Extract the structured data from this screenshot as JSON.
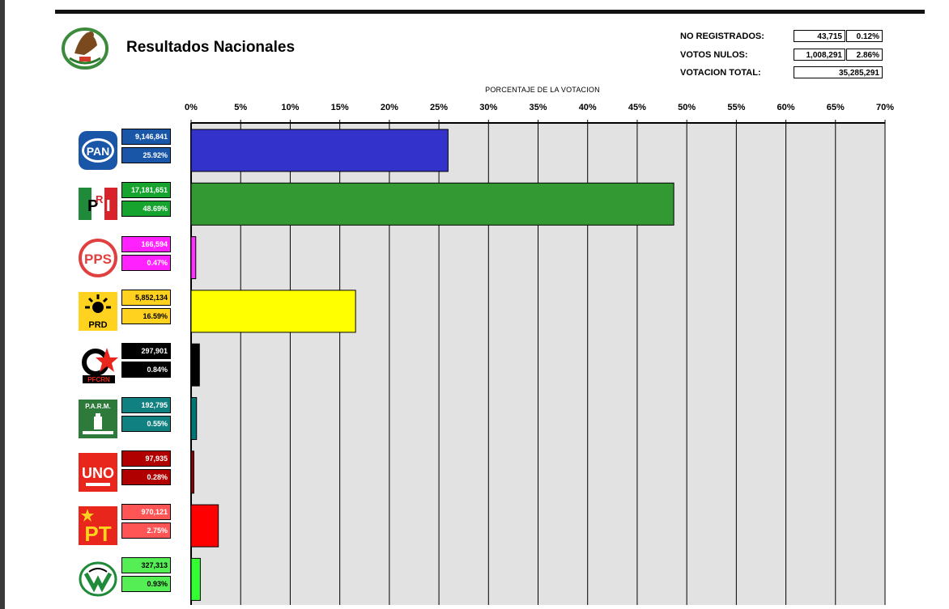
{
  "title": "Resultados Nacionales",
  "summary": {
    "no_registrados": {
      "label": "NO REGISTRADOS:",
      "votes": "43,715",
      "pct": "0.12%"
    },
    "votos_nulos": {
      "label": "VOTOS NULOS:",
      "votes": "1,008,291",
      "pct": "2.86%"
    },
    "votacion_total": {
      "label": "VOTACION TOTAL:",
      "votes": "35,285,291"
    }
  },
  "colors": {
    "grid_bg": "#e2e2e2",
    "emblem_green": "#3c8a3c"
  },
  "chart_data": {
    "type": "bar",
    "orientation": "horizontal",
    "title": "PORCENTAJE DE LA VOTACION",
    "xlim": [
      0,
      70
    ],
    "xticks": [
      "0%",
      "5%",
      "10%",
      "15%",
      "20%",
      "25%",
      "30%",
      "35%",
      "40%",
      "45%",
      "50%",
      "55%",
      "60%",
      "65%",
      "70%"
    ],
    "grid": true,
    "categories": [
      "PAN",
      "PRI",
      "PPS",
      "PRD",
      "PFCRN",
      "PARM",
      "UNO",
      "PT",
      "PVEM"
    ],
    "values": [
      25.92,
      48.69,
      0.47,
      16.59,
      0.84,
      0.55,
      0.28,
      2.75,
      0.93
    ],
    "votes": [
      "9,146,841",
      "17,181,651",
      "166,594",
      "5,852,134",
      "297,901",
      "192,795",
      "97,935",
      "970,121",
      "327,313"
    ],
    "pct_labels": [
      "25.92%",
      "48.69%",
      "0.47%",
      "16.59%",
      "0.84%",
      "0.55%",
      "0.28%",
      "2.75%",
      "0.93%"
    ],
    "bar_colors": [
      "#3333cc",
      "#339933",
      "#ff33ff",
      "#ffff00",
      "#000000",
      "#007777",
      "#990000",
      "#ff0000",
      "#33ff33"
    ],
    "box_colors": [
      "#1a56a8",
      "#16a32e",
      "#ff22ff",
      "#ffd21f",
      "#000000",
      "#108080",
      "#b00000",
      "#ff5555",
      "#55ee55"
    ],
    "box_text_colors": [
      "#ffffff",
      "#ffffff",
      "#ffffff",
      "#000000",
      "#ffffff",
      "#ffffff",
      "#ffffff",
      "#ffffff",
      "#000000"
    ]
  },
  "logos": [
    {
      "icon": "pan-icon",
      "text": "PAN"
    },
    {
      "icon": "pri-icon",
      "text": "PRI"
    },
    {
      "icon": "pps-icon",
      "text": "PPS"
    },
    {
      "icon": "prd-icon",
      "text": "PRD"
    },
    {
      "icon": "pfcrn-icon",
      "text": "PFCRN"
    },
    {
      "icon": "parm-icon",
      "text": "P.A.R.M."
    },
    {
      "icon": "uno-icon",
      "text": "UNO"
    },
    {
      "icon": "pt-icon",
      "text": "PT"
    },
    {
      "icon": "pvem-icon",
      "text": ""
    }
  ]
}
